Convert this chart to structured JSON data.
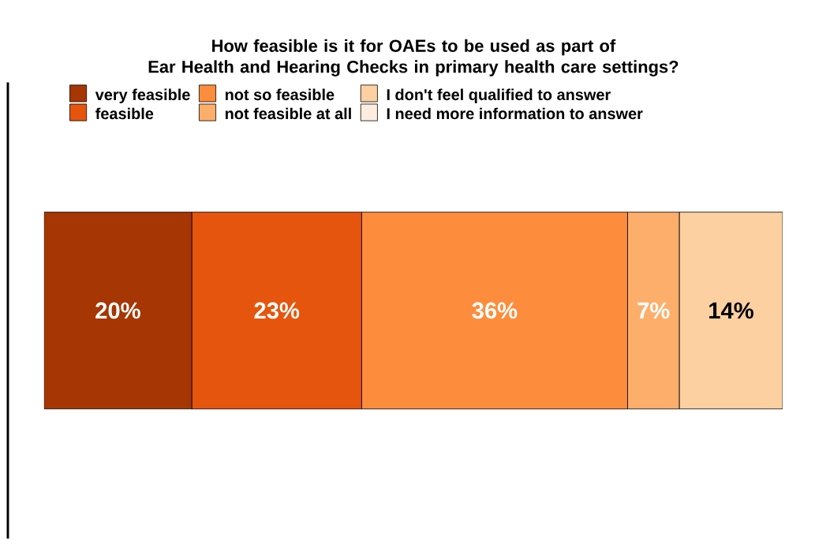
{
  "chart_data": {
    "type": "bar",
    "orientation": "horizontal",
    "stacked": true,
    "legend": "top",
    "title": "How feasible is it for OAEs to be used as part of\nEar Health and Hearing Checks in primary health care settings?",
    "categories": [
      null
    ],
    "series": [
      {
        "name": "very feasible",
        "color": "#a63603",
        "values": [
          20
        ],
        "value_labels": [
          "20%"
        ]
      },
      {
        "name": "feasible",
        "color": "#e6550d",
        "values": [
          23
        ],
        "value_labels": [
          "23%"
        ]
      },
      {
        "name": "not so feasible",
        "color": "#fd8d3c",
        "values": [
          36
        ],
        "value_labels": [
          "36%"
        ]
      },
      {
        "name": "not feasible at all",
        "color": "#fdae6b",
        "values": [
          7
        ],
        "value_labels": [
          "7%"
        ]
      },
      {
        "name": "I don't feel qualified to answer",
        "color": "#fdd0a2",
        "values": [
          14
        ],
        "value_labels": [
          "14%"
        ]
      },
      {
        "name": "I need more information to answer",
        "color": "#feedde",
        "values": [
          null
        ]
      }
    ]
  }
}
